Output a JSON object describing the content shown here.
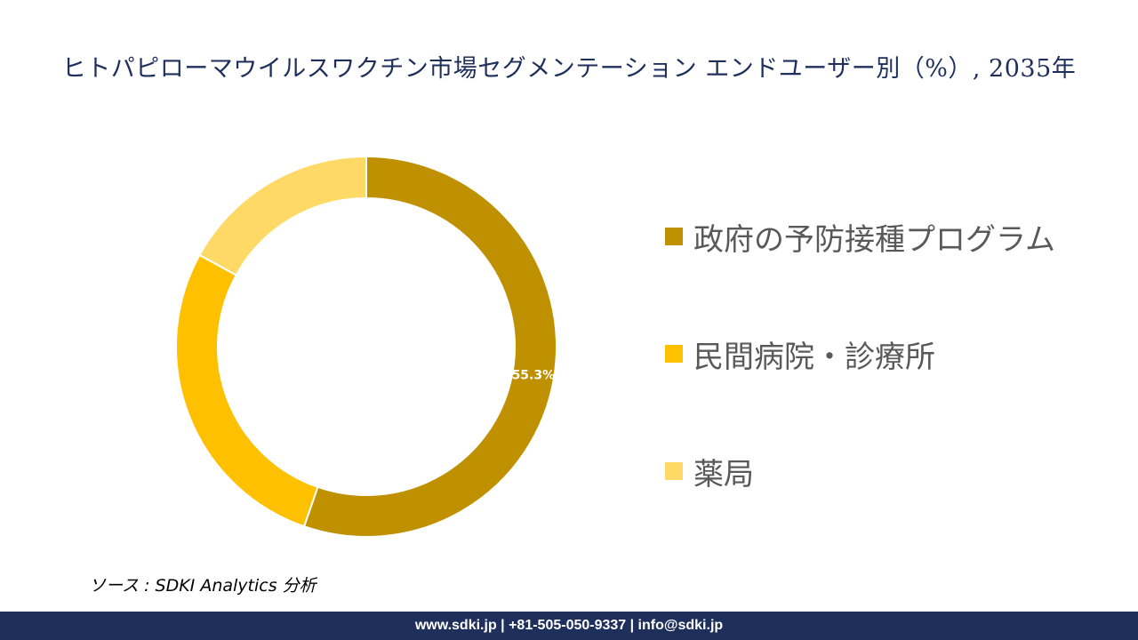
{
  "title": "ヒトパピローマウイルスワクチン市場セグメンテーション エンドユーザー別（%）, 2035年",
  "chart_data": {
    "type": "pie",
    "donut": true,
    "categories": [
      "政府の予防接種プログラム",
      "民間病院・診療所",
      "薬局"
    ],
    "values": [
      55.3,
      27.7,
      17.0
    ],
    "data_labels": [
      "55.3%",
      "",
      ""
    ],
    "colors": [
      "#bf9000",
      "#ffc000",
      "#ffd966"
    ],
    "legend_position": "right"
  },
  "source": "ソース : SDKI Analytics 分析",
  "footer": "www.sdki.jp | +81-505-050-9337 | info@sdki.jp"
}
